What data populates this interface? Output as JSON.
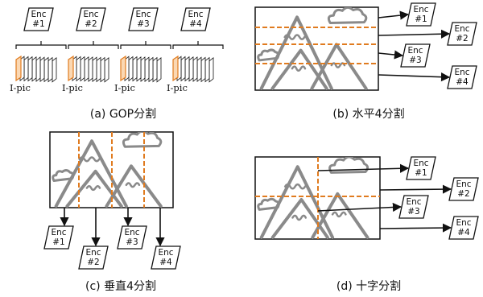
{
  "gop": {
    "encoders": [
      "Enc\n#1",
      "Enc\n#2",
      "Enc\n#3",
      "Enc\n#4"
    ],
    "ipic_label": "I-pic",
    "caption": "(a) GOP分割"
  },
  "horizontal": {
    "encoders": [
      "Enc\n#1",
      "Enc\n#2",
      "Enc\n#3",
      "Enc\n#4"
    ],
    "caption": "(b) 水平4分割"
  },
  "vertical": {
    "encoders": [
      "Enc\n#1",
      "Enc\n#2",
      "Enc\n#3",
      "Enc\n#4"
    ],
    "caption": "(c) 垂直4分割"
  },
  "cross": {
    "encoders": [
      "Enc\n#1",
      "Enc\n#2",
      "Enc\n#3",
      "Enc\n#4"
    ],
    "caption": "(d) 十字分割"
  },
  "colors": {
    "divider": "#e07b1f",
    "ipic_fill": "#fbd8b3",
    "ipic_stroke": "#e07b1f",
    "drawing": "#8a8a8a",
    "line": "#111111"
  }
}
